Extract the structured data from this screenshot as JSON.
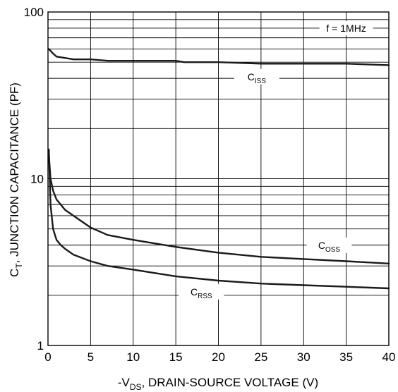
{
  "chart_data": {
    "type": "line",
    "title": "",
    "xlabel": "-V_DS, DRAIN-SOURCE VOLTAGE (V)",
    "xlabel_parts": {
      "pre": "-V",
      "sub": "DS",
      "post": ", DRAIN-SOURCE VOLTAGE (V)"
    },
    "ylabel": "C_T, JUNCTION CAPACITANCE (PF)",
    "ylabel_parts": {
      "pre": "C",
      "sub": "T",
      "post": ", JUNCTION CAPACITANCE (PF)"
    },
    "xlim": [
      0,
      40
    ],
    "ylim": [
      1,
      100
    ],
    "yscale": "log",
    "grid": true,
    "x_ticks": [
      0,
      5,
      10,
      15,
      20,
      25,
      30,
      35,
      40
    ],
    "y_ticks": [
      1,
      10,
      100
    ],
    "annotation": "f = 1MHz",
    "series": [
      {
        "name": "C_ISS",
        "label_parts": {
          "pre": "C",
          "sub": "ISS"
        },
        "x": [
          0.1,
          0.5,
          1,
          2,
          3,
          5,
          7,
          10,
          15,
          16,
          20,
          25,
          30,
          35,
          40
        ],
        "y": [
          60,
          57,
          54,
          53,
          52,
          52,
          51,
          51,
          51,
          50,
          50,
          49,
          49,
          49,
          48
        ]
      },
      {
        "name": "C_OSS",
        "label_parts": {
          "pre": "C",
          "sub": "OSS"
        },
        "x": [
          0.1,
          0.3,
          0.6,
          1,
          1.5,
          2,
          3,
          5,
          7,
          10,
          15,
          20,
          25,
          30,
          35,
          40
        ],
        "y": [
          14,
          10,
          8.5,
          7.5,
          7,
          6.5,
          6,
          5.1,
          4.6,
          4.3,
          3.9,
          3.6,
          3.4,
          3.3,
          3.2,
          3.1
        ]
      },
      {
        "name": "C_RSS",
        "label_parts": {
          "pre": "C",
          "sub": "RSS"
        },
        "x": [
          0.1,
          0.3,
          0.6,
          1,
          1.5,
          2,
          3,
          5,
          7,
          10,
          15,
          20,
          25,
          30,
          35,
          40
        ],
        "y": [
          15,
          7,
          5,
          4.3,
          4,
          3.8,
          3.5,
          3.2,
          3.0,
          2.85,
          2.6,
          2.45,
          2.35,
          2.3,
          2.25,
          2.2
        ]
      }
    ]
  }
}
